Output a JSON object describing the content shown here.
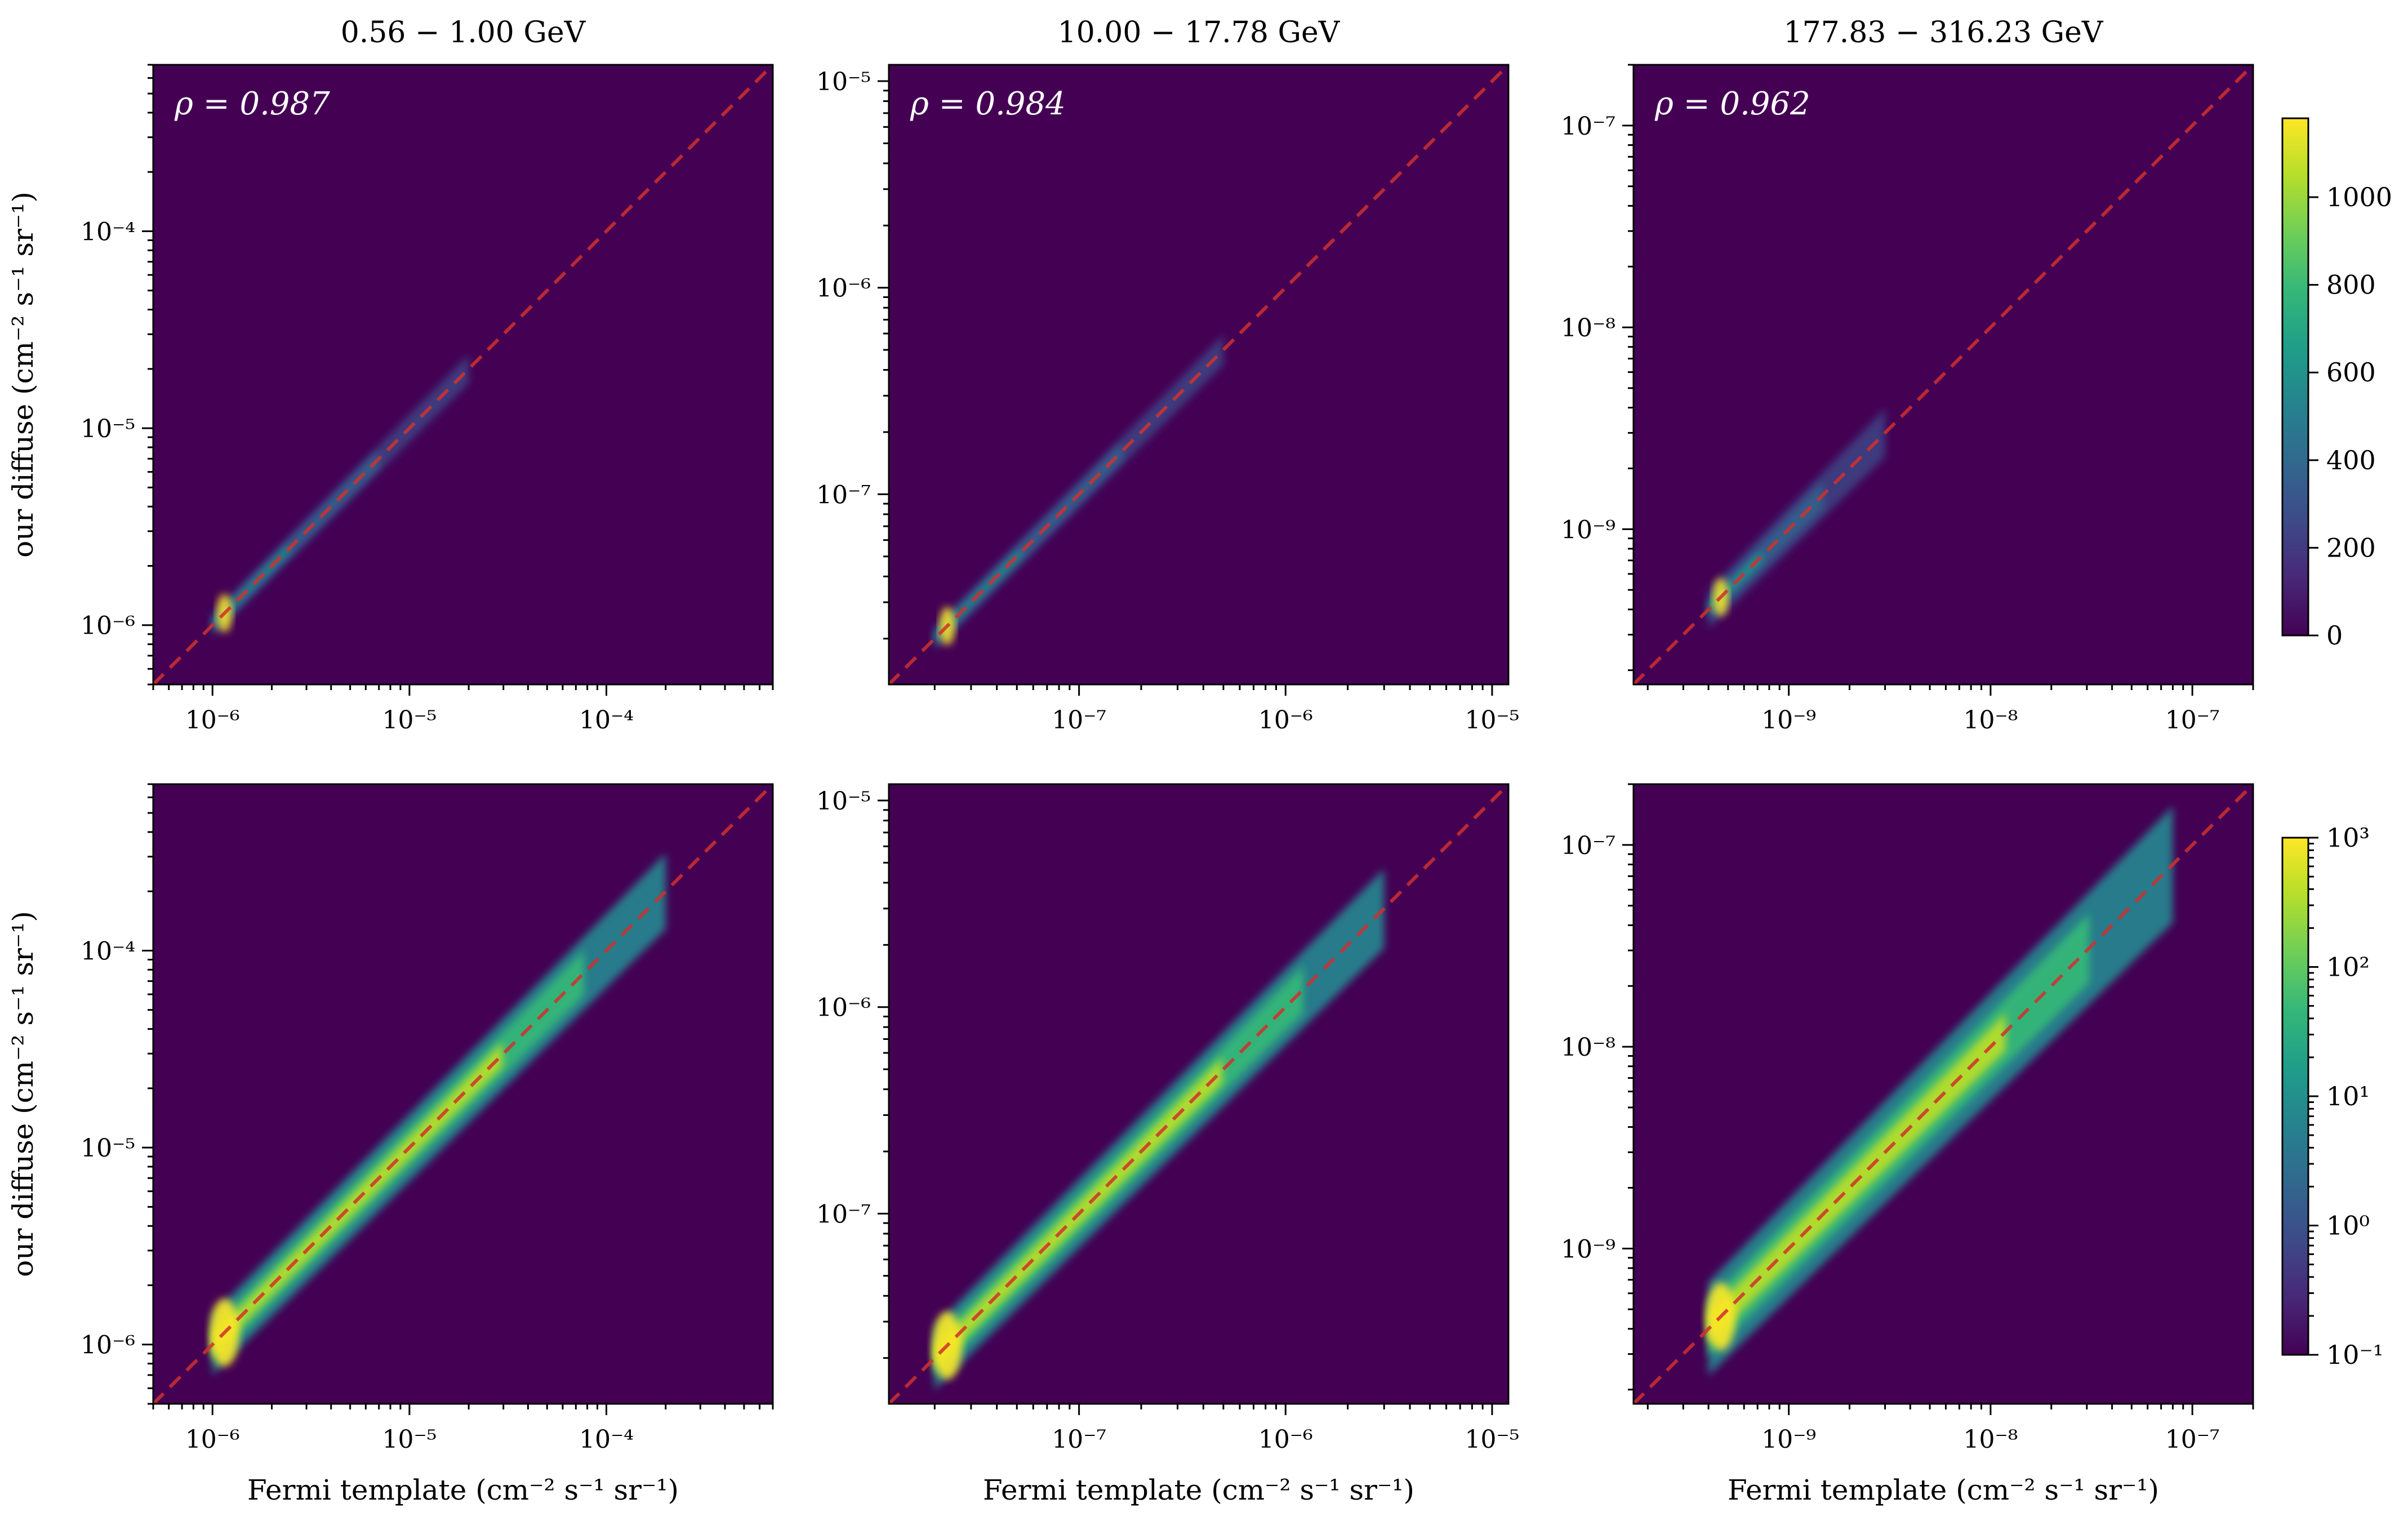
{
  "colors": {
    "panel_background": "#440154",
    "diagonal": "#d0312d",
    "viridis": [
      "#440154",
      "#482878",
      "#3e4a89",
      "#31688e",
      "#26828e",
      "#1f9e89",
      "#35b779",
      "#6ece58",
      "#b5de2b",
      "#fde725"
    ]
  },
  "chart_data": [
    {
      "type": "heatmap",
      "row": 0,
      "col": 0,
      "title": "0.56 − 1.00 GeV",
      "rho": "ρ = 0.987",
      "xlabel": "",
      "ylabel": "our diffuse (cm⁻² s⁻¹ sr⁻¹)",
      "log_x": true,
      "log_y": true,
      "xlim": [
        5e-07,
        0.0007
      ],
      "ylim": [
        5e-07,
        0.0007
      ],
      "x_ticks": [
        "10⁻⁶",
        "10⁻⁵",
        "10⁻⁴"
      ],
      "y_ticks": [
        "10⁻⁶",
        "10⁻⁵",
        "10⁻⁴"
      ],
      "x_tick_values": [
        1e-06,
        1e-05,
        0.0001
      ],
      "y_tick_values": [
        1e-06,
        1e-05,
        0.0001
      ],
      "reference_line": "y = x",
      "color_scale": "linear",
      "band_x": [
        1e-06,
        2e-05
      ],
      "band_width_dex": 0.06
    },
    {
      "type": "heatmap",
      "row": 0,
      "col": 1,
      "title": "10.00 − 17.78 GeV",
      "rho": "ρ = 0.984",
      "xlabel": "",
      "ylabel": "",
      "log_x": true,
      "log_y": true,
      "xlim": [
        1.2e-08,
        1.2e-05
      ],
      "ylim": [
        1.2e-08,
        1.2e-05
      ],
      "x_ticks": [
        "10⁻⁷",
        "10⁻⁶",
        "10⁻⁵"
      ],
      "y_ticks": [
        "10⁻⁷",
        "10⁻⁶",
        "10⁻⁵"
      ],
      "x_tick_values": [
        1e-07,
        1e-06,
        1e-05
      ],
      "y_tick_values": [
        1e-07,
        1e-06,
        1e-05
      ],
      "reference_line": "y = x",
      "color_scale": "linear",
      "band_x": [
        2e-08,
        5e-07
      ],
      "band_width_dex": 0.06
    },
    {
      "type": "heatmap",
      "row": 0,
      "col": 2,
      "title": "177.83 − 316.23 GeV",
      "rho": "ρ = 0.962",
      "xlabel": "",
      "ylabel": "",
      "log_x": true,
      "log_y": true,
      "xlim": [
        1.7e-10,
        2e-07
      ],
      "ylim": [
        1.7e-10,
        2e-07
      ],
      "x_ticks": [
        "10⁻⁹",
        "10⁻⁸",
        "10⁻⁷"
      ],
      "y_ticks": [
        "10⁻⁹",
        "10⁻⁸",
        "10⁻⁷"
      ],
      "x_tick_values": [
        1e-09,
        1e-08,
        1e-07
      ],
      "y_tick_values": [
        1e-09,
        1e-08,
        1e-07
      ],
      "reference_line": "y = x",
      "color_scale": "linear",
      "band_x": [
        4e-10,
        3e-09
      ],
      "band_width_dex": 0.1
    },
    {
      "type": "heatmap",
      "row": 1,
      "col": 0,
      "title": "",
      "rho": "",
      "xlabel": "Fermi template (cm⁻² s⁻¹ sr⁻¹)",
      "ylabel": "our diffuse (cm⁻² s⁻¹ sr⁻¹)",
      "log_x": true,
      "log_y": true,
      "xlim": [
        5e-07,
        0.0007
      ],
      "ylim": [
        5e-07,
        0.0007
      ],
      "x_ticks": [
        "10⁻⁶",
        "10⁻⁵",
        "10⁻⁴"
      ],
      "y_ticks": [
        "10⁻⁶",
        "10⁻⁵",
        "10⁻⁴"
      ],
      "x_tick_values": [
        1e-06,
        1e-05,
        0.0001
      ],
      "y_tick_values": [
        1e-06,
        1e-05,
        0.0001
      ],
      "reference_line": "y = x",
      "color_scale": "log",
      "band_x": [
        1e-06,
        0.0002
      ],
      "band_width_dex": 0.12
    },
    {
      "type": "heatmap",
      "row": 1,
      "col": 1,
      "title": "",
      "rho": "",
      "xlabel": "Fermi template (cm⁻² s⁻¹ sr⁻¹)",
      "ylabel": "",
      "log_x": true,
      "log_y": true,
      "xlim": [
        1.2e-08,
        1.2e-05
      ],
      "ylim": [
        1.2e-08,
        1.2e-05
      ],
      "x_ticks": [
        "10⁻⁷",
        "10⁻⁶",
        "10⁻⁵"
      ],
      "y_ticks": [
        "10⁻⁷",
        "10⁻⁶",
        "10⁻⁵"
      ],
      "x_tick_values": [
        1e-07,
        1e-06,
        1e-05
      ],
      "y_tick_values": [
        1e-07,
        1e-06,
        1e-05
      ],
      "reference_line": "y = x",
      "color_scale": "log",
      "band_x": [
        2e-08,
        3e-06
      ],
      "band_width_dex": 0.12
    },
    {
      "type": "heatmap",
      "row": 1,
      "col": 2,
      "title": "",
      "rho": "",
      "xlabel": "Fermi template (cm⁻² s⁻¹ sr⁻¹)",
      "ylabel": "",
      "log_x": true,
      "log_y": true,
      "xlim": [
        1.7e-10,
        2e-07
      ],
      "ylim": [
        1.7e-10,
        2e-07
      ],
      "x_ticks": [
        "10⁻⁹",
        "10⁻⁸",
        "10⁻⁷"
      ],
      "y_ticks": [
        "10⁻⁹",
        "10⁻⁸",
        "10⁻⁷"
      ],
      "x_tick_values": [
        1e-09,
        1e-08,
        1e-07
      ],
      "y_tick_values": [
        1e-09,
        1e-08,
        1e-07
      ],
      "reference_line": "y = x",
      "color_scale": "log",
      "band_x": [
        4e-10,
        8e-08
      ],
      "band_width_dex": 0.18
    }
  ],
  "colorbars": [
    {
      "row": 0,
      "scale": "linear",
      "range": [
        0,
        1180
      ],
      "ticks": [
        "0",
        "200",
        "400",
        "600",
        "800",
        "1000"
      ],
      "tick_values": [
        0,
        200,
        400,
        600,
        800,
        1000
      ]
    },
    {
      "row": 1,
      "scale": "log",
      "range": [
        0.1,
        1000
      ],
      "ticks": [
        "10⁻¹",
        "10⁰",
        "10¹",
        "10²",
        "10³"
      ],
      "tick_values": [
        0.1,
        1,
        10,
        100,
        1000
      ]
    }
  ]
}
